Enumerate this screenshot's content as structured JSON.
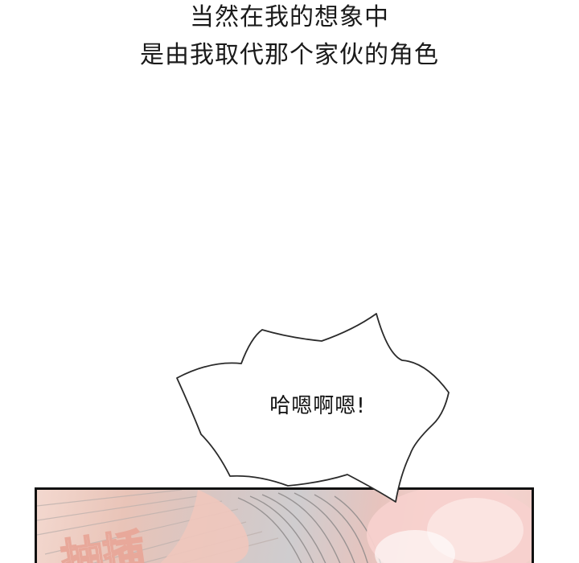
{
  "narration": {
    "line1": "当然在我的想象中",
    "line2": "是由我取代那个家伙的角色"
  },
  "speech_bubble": {
    "text": "哈嗯啊嗯!"
  },
  "panel": {
    "sfx_text": "抽插"
  }
}
